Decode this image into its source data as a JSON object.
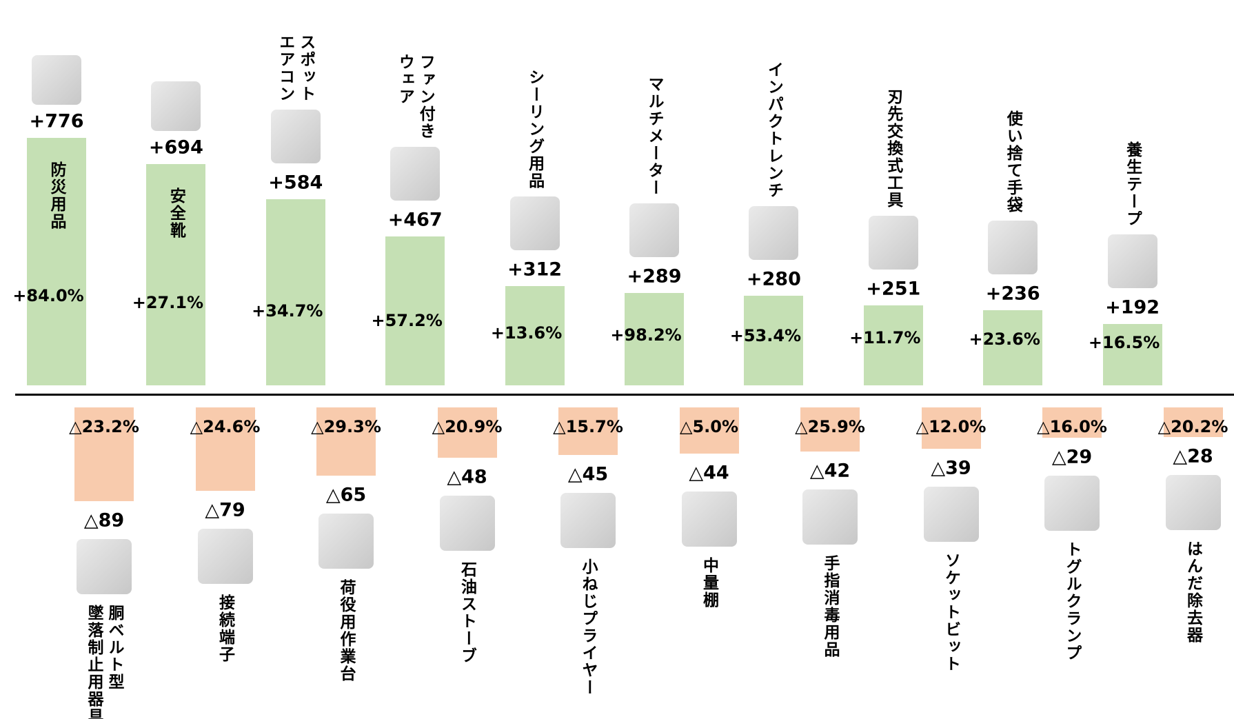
{
  "chart_data": {
    "type": "diverging-bar",
    "increase": {
      "color": "#c5e0b4",
      "categories": [
        "防災用品",
        "安全靴",
        "スポット\nエアコン",
        "ファン付き\nウェア",
        "シーリング用品",
        "マルチメーター",
        "インパクトレンチ",
        "刃先交換式工具",
        "使い捨て手袋",
        "養生テープ"
      ],
      "values": [
        776,
        694,
        584,
        467,
        312,
        289,
        280,
        251,
        236,
        192
      ],
      "value_labels": [
        "+776",
        "+694",
        "+584",
        "+467",
        "+312",
        "+289",
        "+280",
        "+251",
        "+236",
        "+192"
      ],
      "rates": [
        84.0,
        27.1,
        34.7,
        57.2,
        13.6,
        98.2,
        53.4,
        11.7,
        23.6,
        16.5
      ],
      "rate_labels": [
        "+84.0%",
        "+27.1%",
        "+34.7%",
        "+57.2%",
        "+13.6%",
        "+98.2%",
        "+53.4%",
        "+11.7%",
        "+23.6%",
        "+16.5%"
      ]
    },
    "decrease": {
      "color": "#f8cbad",
      "categories": [
        "胴ベルト型\n墜落制止用器具",
        "接続端子",
        "荷役用作業台",
        "石油ストーブ",
        "小ねじプライヤー",
        "中量棚",
        "手指消毒用品",
        "ソケットビット",
        "トグルクランプ",
        "はんだ除去器"
      ],
      "values": [
        -89,
        -79,
        -65,
        -48,
        -45,
        -44,
        -42,
        -39,
        -29,
        -28
      ],
      "value_labels": [
        "△89",
        "△79",
        "△65",
        "△48",
        "△45",
        "△44",
        "△42",
        "△39",
        "△29",
        "△28"
      ],
      "rates": [
        -23.2,
        -24.6,
        -29.3,
        -20.9,
        -15.7,
        -5.0,
        -25.9,
        -12.0,
        -16.0,
        -20.2
      ],
      "rate_labels": [
        "△23.2%",
        "△24.6%",
        "△29.3%",
        "△20.9%",
        "△15.7%",
        "△5.0%",
        "△25.9%",
        "△12.0%",
        "△16.0%",
        "△20.2%"
      ]
    }
  }
}
